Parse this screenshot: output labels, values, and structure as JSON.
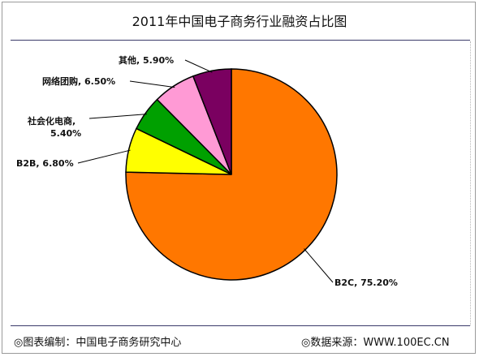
{
  "header": {
    "title": "2011年中国电子商务行业融资占比图"
  },
  "footer": {
    "left": "◎图表编制：中国电子商务研究中心",
    "right": "◎数据来源：WWW.100EC.CN"
  },
  "chart_data": {
    "type": "pie",
    "title": "2011年中国电子商务行业融资占比图",
    "slices": [
      {
        "name": "B2C",
        "value": 75.2,
        "label": "B2C, 75.20%",
        "color": "#ff7700"
      },
      {
        "name": "B2B",
        "value": 6.8,
        "label": "B2B, 6.80%",
        "color": "#ffff00"
      },
      {
        "name": "社会化电商",
        "value": 5.4,
        "label_line1": "社会化电商,",
        "label_line2": "5.40%",
        "color": "#00a000"
      },
      {
        "name": "网络团购",
        "value": 6.5,
        "label": "网络团购, 6.50%",
        "color": "#ff9ad5"
      },
      {
        "name": "其他",
        "value": 5.9,
        "label": "其他, 5.90%",
        "color": "#7a0060"
      }
    ]
  }
}
